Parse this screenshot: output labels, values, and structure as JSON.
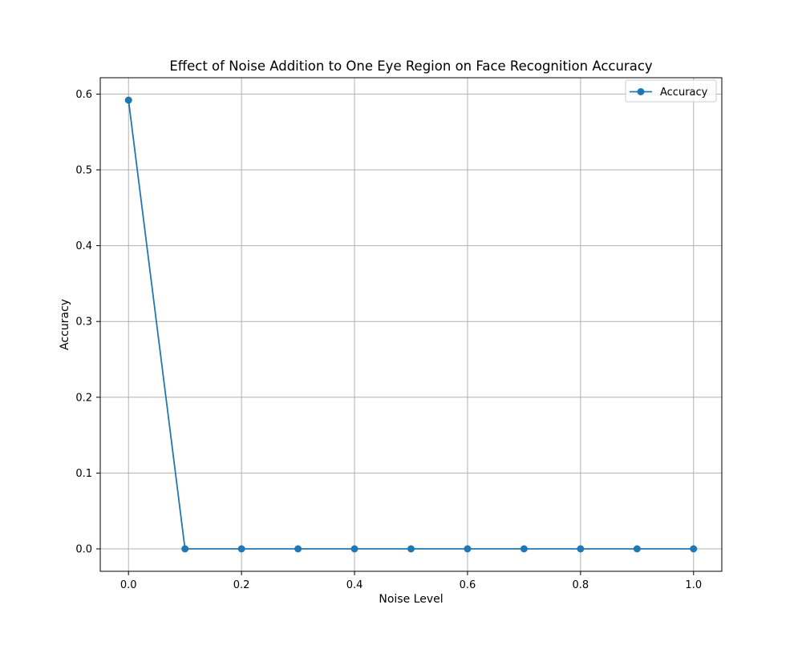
{
  "chart_data": {
    "type": "line",
    "title": "Effect of Noise Addition to One Eye Region on Face Recognition Accuracy",
    "xlabel": "Noise Level",
    "ylabel": "Accuracy",
    "xlim": [
      -0.05,
      1.05
    ],
    "ylim": [
      -0.0296,
      0.6216
    ],
    "xticks": [
      0.0,
      0.2,
      0.4,
      0.6,
      0.8,
      1.0
    ],
    "xtick_labels": [
      "0.0",
      "0.2",
      "0.4",
      "0.6",
      "0.8",
      "1.0"
    ],
    "yticks": [
      0.0,
      0.1,
      0.2,
      0.3,
      0.4,
      0.5,
      0.6
    ],
    "ytick_labels": [
      "0.0",
      "0.1",
      "0.2",
      "0.3",
      "0.4",
      "0.5",
      "0.6"
    ],
    "grid": true,
    "legend_position": "top-right",
    "series": [
      {
        "name": "Accuracy",
        "color": "#1f77b4",
        "marker": "circle",
        "x": [
          0.0,
          0.1,
          0.2,
          0.3,
          0.4,
          0.5,
          0.6,
          0.7,
          0.8,
          0.9,
          1.0
        ],
        "y": [
          0.592,
          0.0,
          0.0,
          0.0,
          0.0,
          0.0,
          0.0,
          0.0,
          0.0,
          0.0,
          0.0
        ]
      }
    ]
  }
}
